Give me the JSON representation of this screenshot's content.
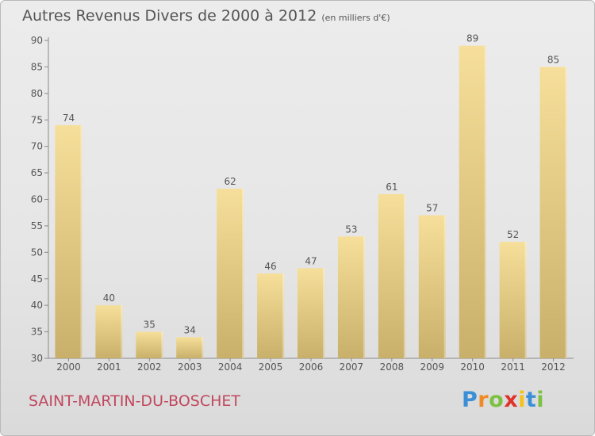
{
  "title": "Autres Revenus Divers de 2000 à 2012",
  "unit": "(en milliers d'€)",
  "city": "SAINT-MARTIN-DU-BOSCHET",
  "logo": {
    "letters": [
      "P",
      "r",
      "o",
      "x",
      "i",
      "t",
      "i"
    ],
    "colors": [
      "#3b8fd6",
      "#f08a24",
      "#7cc142",
      "#e0322b",
      "#f4c21b",
      "#3b8fd6",
      "#7cc142"
    ]
  },
  "colors": {
    "bar_light": "#f6df9a",
    "bar_dark": "#c9b06a",
    "text": "#555555",
    "city": "#c0485e"
  },
  "chart_data": {
    "type": "bar",
    "categories": [
      "2000",
      "2001",
      "2002",
      "2003",
      "2004",
      "2005",
      "2006",
      "2007",
      "2008",
      "2009",
      "2010",
      "2011",
      "2012"
    ],
    "values": [
      74,
      40,
      35,
      34,
      62,
      46,
      47,
      53,
      61,
      57,
      89,
      52,
      85
    ],
    "ylim": [
      30,
      90
    ],
    "yticks": [
      30,
      35,
      40,
      45,
      50,
      55,
      60,
      65,
      70,
      75,
      80,
      85,
      90
    ],
    "grid": false,
    "data_labels": true
  }
}
